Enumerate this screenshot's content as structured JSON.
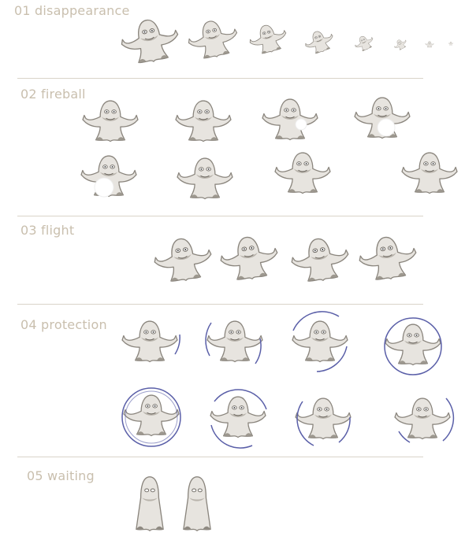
{
  "sheet": {
    "sections": [
      {
        "id": "disappearance",
        "label": "01 disappearance"
      },
      {
        "id": "fireball",
        "label": "02 fireball"
      },
      {
        "id": "flight",
        "label": "03 flight"
      },
      {
        "id": "protection",
        "label": "04 protection"
      },
      {
        "id": "waiting",
        "label": "05 waiting"
      }
    ]
  },
  "colors": {
    "ghost_body": "#e7e4df",
    "ghost_outline": "#8a857d",
    "ghost_shadow": "#b9b4ac",
    "label_text": "#c9bfae",
    "divider": "#d9d4c9",
    "shield_ring": "#5a5fa8",
    "fireball": "#ffffff"
  }
}
